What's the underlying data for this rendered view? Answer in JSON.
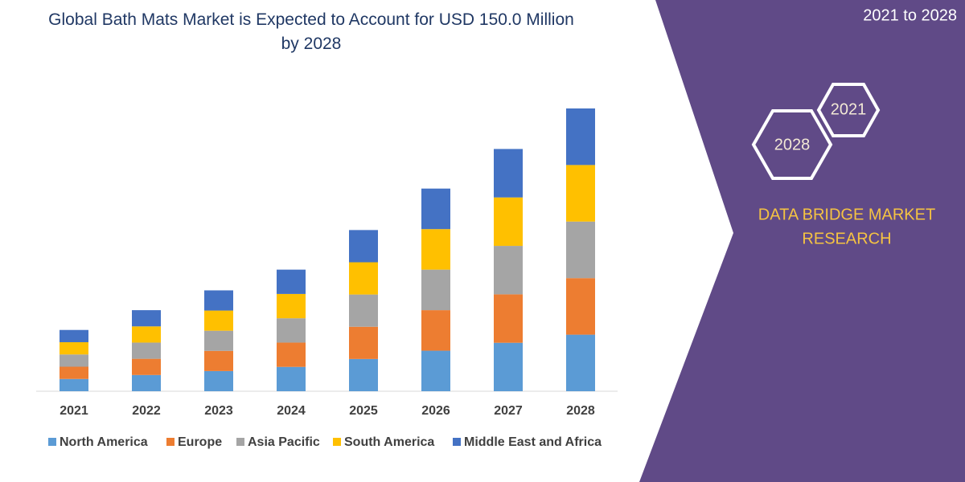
{
  "chart_data": {
    "type": "bar",
    "stacked": true,
    "title": "Global Bath Mats Market is Expected to Account for USD 150.0 Million by 2028",
    "categories": [
      "2021",
      "2022",
      "2023",
      "2024",
      "2025",
      "2026",
      "2027",
      "2028"
    ],
    "series": [
      {
        "name": "North America",
        "color": "#5b9bd5",
        "values": [
          6.5,
          8.6,
          10.7,
          12.9,
          17.1,
          21.5,
          25.7,
          30
        ]
      },
      {
        "name": "Europe",
        "color": "#ed7d31",
        "values": [
          6.5,
          8.6,
          10.7,
          12.9,
          17.1,
          21.5,
          25.7,
          30
        ]
      },
      {
        "name": "Asia Pacific",
        "color": "#a5a5a5",
        "values": [
          6.5,
          8.6,
          10.7,
          12.9,
          17.1,
          21.5,
          25.7,
          30
        ]
      },
      {
        "name": "South America",
        "color": "#ffc000",
        "values": [
          6.5,
          8.6,
          10.7,
          12.9,
          17.1,
          21.5,
          25.7,
          30
        ]
      },
      {
        "name": "Middle East and Africa",
        "color": "#4472c4",
        "values": [
          6.5,
          8.6,
          10.7,
          12.9,
          17.1,
          21.5,
          25.7,
          30
        ]
      }
    ],
    "legend": "bottom"
  },
  "sidebar": {
    "period": "2021 to 2028",
    "hexagons": [
      "2021",
      "2028"
    ],
    "brand": [
      "DATA BRIDGE MARKET",
      "RESEARCH"
    ]
  }
}
